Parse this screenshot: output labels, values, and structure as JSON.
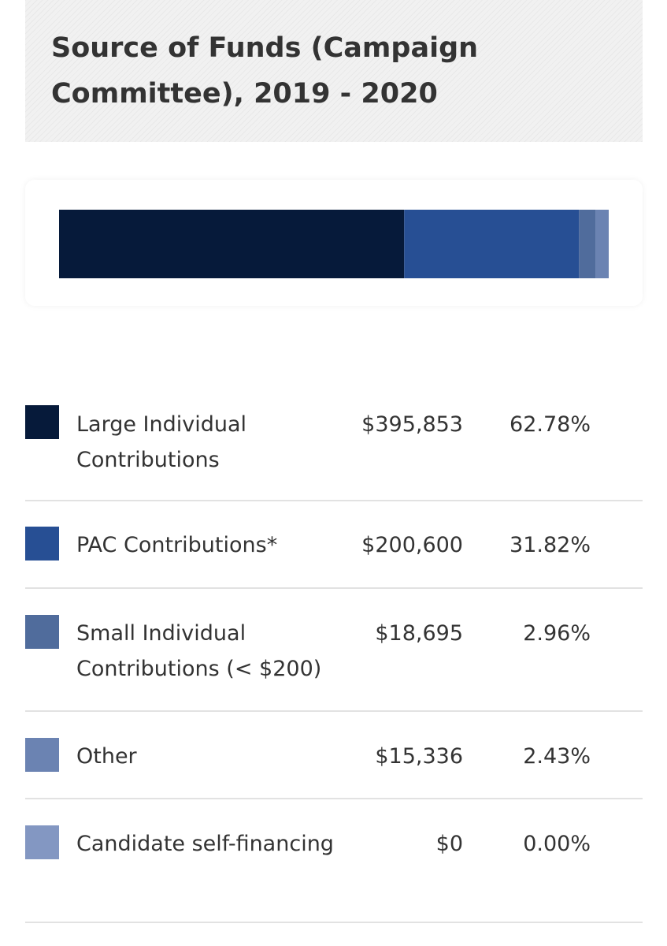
{
  "chart_data": {
    "type": "bar",
    "orientation": "horizontal-stacked",
    "title": "Source of Funds (Campaign Committee), 2019 - 2020",
    "categories": [
      "Large Individual Contributions",
      "PAC Contributions*",
      "Small Individual Contributions (< $200)",
      "Other",
      "Candidate self-financing"
    ],
    "values": [
      395853,
      200600,
      18695,
      15336,
      0
    ],
    "amount_labels": [
      "$395,853",
      "$200,600",
      "$18,695",
      "$15,336",
      "$0"
    ],
    "percent_labels": [
      "62.78%",
      "31.82%",
      "2.96%",
      "2.43%",
      "0.00%"
    ],
    "percents": [
      62.78,
      31.82,
      2.96,
      2.43,
      0.0
    ],
    "colors": [
      "#061a3a",
      "#274f94",
      "#506c9c",
      "#6b83b2",
      "#8397c2"
    ],
    "xlabel": "",
    "ylabel": "",
    "legend": "below"
  }
}
